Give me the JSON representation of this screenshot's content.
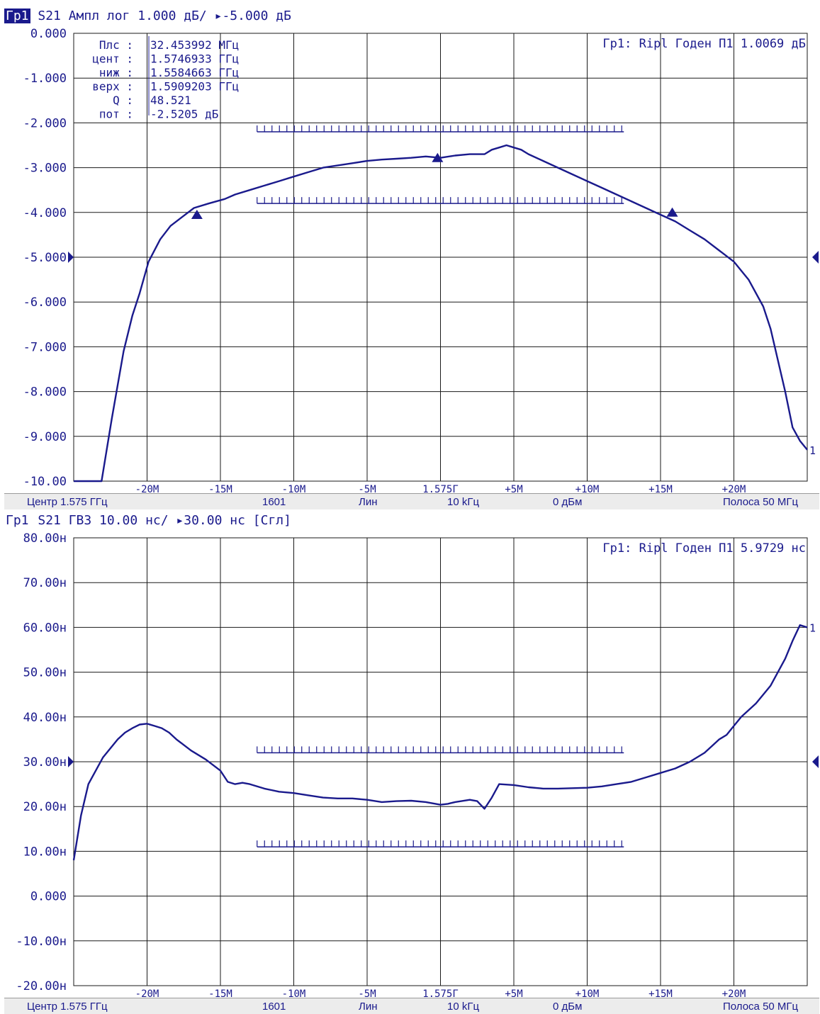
{
  "chart_data": [
    {
      "type": "line",
      "header": {
        "tag": "Гр1",
        "text": " S21 Ампл лог 1.000 дБ/ ▸-5.000 дБ"
      },
      "ylim": [
        -10,
        0
      ],
      "y_tick_labels": [
        "0.000",
        "-1.000",
        "-2.000",
        "-3.000",
        "-4.000",
        "-5.000",
        "-6.000",
        "-7.000",
        "-8.000",
        "-9.000",
        "-10.00"
      ],
      "y_tick_values": [
        0,
        -1,
        -2,
        -3,
        -4,
        -5,
        -6,
        -7,
        -8,
        -9,
        -10
      ],
      "x_tick_labels": [
        "-20M",
        "-15M",
        "-10M",
        "-5M",
        "1.575Г",
        "+5M",
        "+10M",
        "+15M",
        "+20M"
      ],
      "x_tick_values": [
        -20,
        -15,
        -10,
        -5,
        0,
        5,
        10,
        15,
        20
      ],
      "xlim": [
        -25,
        25
      ],
      "reference_level": -5,
      "series": [
        {
          "x": [
            -25,
            -23.1,
            -22.4,
            -21.6,
            -21,
            -20.5,
            -19.9,
            -19.1,
            -18.4,
            -17.6,
            -16.8,
            -15.8,
            -14.7,
            -14,
            -13,
            -12,
            -11,
            -10,
            -9,
            -8,
            -7,
            -6,
            -5,
            -4,
            -3,
            -2,
            -1,
            0,
            1,
            2,
            3,
            3.5,
            4,
            4.5,
            5,
            5.5,
            6,
            7,
            8,
            9,
            10,
            11,
            12,
            13,
            14,
            15,
            16,
            17,
            18,
            19,
            20,
            21,
            22,
            22.5,
            23,
            23.5,
            24,
            24.5,
            25
          ],
          "values": [
            -10,
            -10,
            -8.6,
            -7.1,
            -6.3,
            -5.8,
            -5.1,
            -4.6,
            -4.3,
            -4.1,
            -3.9,
            -3.8,
            -3.7,
            -3.6,
            -3.5,
            -3.4,
            -3.3,
            -3.2,
            -3.1,
            -3.0,
            -2.95,
            -2.9,
            -2.85,
            -2.82,
            -2.8,
            -2.78,
            -2.75,
            -2.78,
            -2.73,
            -2.7,
            -2.7,
            -2.6,
            -2.55,
            -2.5,
            -2.55,
            -2.6,
            -2.7,
            -2.85,
            -3.0,
            -3.15,
            -3.3,
            -3.45,
            -3.6,
            -3.75,
            -3.9,
            -4.05,
            -4.2,
            -4.4,
            -4.6,
            -4.85,
            -5.1,
            -5.5,
            -6.1,
            -6.6,
            -7.3,
            -8.0,
            -8.8,
            -9.1,
            -9.3
          ]
        }
      ],
      "markers": [
        {
          "x": -16.6,
          "y": -4.05
        },
        {
          "x": -0.2,
          "y": -2.78
        },
        {
          "x": 15.8,
          "y": -4.0
        }
      ],
      "limit_upper": {
        "x": [
          -12.5,
          12.5
        ],
        "y": -2.2
      },
      "limit_lower": {
        "x": [
          -12.5,
          12.5
        ],
        "y": -3.8
      },
      "marker_readout": [
        {
          "label": "Плс :",
          "value": "32.453992 МГц"
        },
        {
          "label": "цент :",
          "value": "1.5746933 ГГц"
        },
        {
          "label": "ниж :",
          "value": "1.5584663 ГГц"
        },
        {
          "label": "верх :",
          "value": "1.5909203 ГГц"
        },
        {
          "label": "Q :",
          "value": "48.521"
        },
        {
          "label": "пот :",
          "value": "-2.5205 дБ"
        }
      ],
      "ripple_text": "Гр1: Ripl Годен П1 1.0069 дБ",
      "trace_label": "1",
      "status": [
        "Центр 1.575 ГГц",
        "1601",
        "Лин",
        "10 kГц",
        "0 дБм",
        "Полоса 50 МГц"
      ]
    },
    {
      "type": "line",
      "header": {
        "tag": "Гр1",
        "text": " S21 ГВЗ 10.00 нс/ ▸30.00 нс [Сгл]"
      },
      "ylim": [
        -20,
        80
      ],
      "y_tick_labels": [
        "80.00н",
        "70.00н",
        "60.00н",
        "50.00н",
        "40.00н",
        "30.00н",
        "20.00н",
        "10.00н",
        "0.000",
        "-10.00н",
        "-20.00н"
      ],
      "y_tick_values": [
        80,
        70,
        60,
        50,
        40,
        30,
        20,
        10,
        0,
        -10,
        -20
      ],
      "x_tick_labels": [
        "-20M",
        "-15M",
        "-10M",
        "-5M",
        "1.575Г",
        "+5M",
        "+10M",
        "+15M",
        "+20M"
      ],
      "x_tick_values": [
        -20,
        -15,
        -10,
        -5,
        0,
        5,
        10,
        15,
        20
      ],
      "xlim": [
        -25,
        25
      ],
      "reference_level": 30,
      "series": [
        {
          "x": [
            -25,
            -24.5,
            -24,
            -23.5,
            -23,
            -22.5,
            -22,
            -21.5,
            -21,
            -20.5,
            -20,
            -19.5,
            -19,
            -18.5,
            -18,
            -17,
            -16,
            -15,
            -14.5,
            -14,
            -13.5,
            -13,
            -12,
            -11,
            -10,
            -9,
            -8,
            -7,
            -6,
            -5,
            -4,
            -3,
            -2,
            -1,
            0,
            0.5,
            1,
            2,
            2.5,
            3,
            3.5,
            4,
            5,
            6,
            7,
            8,
            9,
            10,
            11,
            12,
            13,
            14,
            15,
            16,
            17,
            18,
            18.5,
            19,
            19.5,
            20,
            20.5,
            21,
            21.5,
            22,
            22.5,
            23,
            23.5,
            24,
            24.5,
            25
          ],
          "values": [
            8,
            18,
            25,
            28,
            31,
            33,
            35,
            36.5,
            37.5,
            38.3,
            38.5,
            38,
            37.5,
            36.5,
            35,
            32.5,
            30.5,
            28,
            25.5,
            25,
            25.3,
            25,
            24,
            23.3,
            23,
            22.5,
            22,
            21.8,
            21.8,
            21.5,
            21,
            21.2,
            21.3,
            21,
            20.4,
            20.6,
            21,
            21.5,
            21.2,
            19.5,
            22,
            25,
            24.8,
            24.3,
            24,
            24,
            24.1,
            24.2,
            24.5,
            25,
            25.5,
            26.5,
            27.5,
            28.5,
            30,
            32,
            33.5,
            35,
            36,
            38,
            40,
            41.5,
            43,
            45,
            47,
            50,
            53,
            57,
            60.5,
            60
          ]
        }
      ],
      "limit_upper": {
        "x": [
          -12.5,
          12.5
        ],
        "y": 32
      },
      "limit_lower": {
        "x": [
          -12.5,
          12.5
        ],
        "y": 11
      },
      "ripple_text": "Гр1: Ripl Годен П1 5.9729 нс",
      "trace_label": "1",
      "status": [
        "Центр 1.575 ГГц",
        "1601",
        "Лин",
        "10 kГц",
        "0 дБм",
        "Полоса 50 МГц"
      ]
    }
  ],
  "colors": {
    "trace": "#1a1a8c",
    "grid": "#1a1a1a",
    "axis_text": "#1a1a8c",
    "status_bg": "#ececec"
  }
}
